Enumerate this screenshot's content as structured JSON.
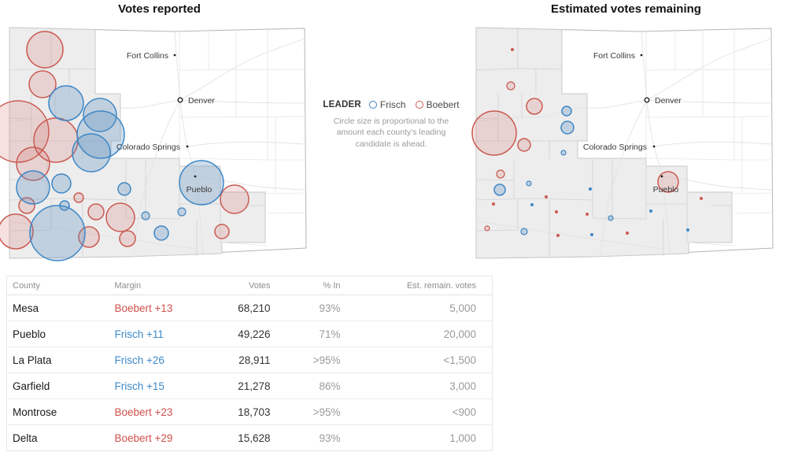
{
  "maps": {
    "left": {
      "title": "Votes reported"
    },
    "right": {
      "title": "Estimated votes remaining"
    },
    "cities": [
      {
        "name": "Fort Collins",
        "marker": "dot",
        "dot": [
          212,
          39
        ],
        "label": [
          204,
          43
        ],
        "anchor": "end"
      },
      {
        "name": "Denver",
        "marker": "ring",
        "dot": [
          219,
          96
        ],
        "label": [
          229,
          100
        ],
        "anchor": "start"
      },
      {
        "name": "Colorado Springs",
        "marker": "dot",
        "dot": [
          228,
          155
        ],
        "label": [
          219,
          159
        ],
        "anchor": "end"
      },
      {
        "name": "Pueblo",
        "marker": "dot",
        "dot": [
          238,
          193
        ],
        "label": [
          243,
          213
        ],
        "anchor": "middle"
      }
    ],
    "circles": {
      "left": {
        "boebert": [
          [
            47,
            32,
            23
          ],
          [
            44,
            76,
            17
          ],
          [
            13,
            136,
            39
          ],
          [
            61,
            147,
            28
          ],
          [
            32,
            177,
            21
          ],
          [
            24,
            230,
            10
          ],
          [
            10,
            263,
            22
          ],
          [
            90,
            220,
            6
          ],
          [
            112,
            238,
            10
          ],
          [
            143,
            245,
            18
          ],
          [
            103,
            270,
            13
          ],
          [
            152,
            272,
            10
          ],
          [
            288,
            222,
            18
          ],
          [
            272,
            263,
            9
          ]
        ],
        "frisch": [
          [
            74,
            100,
            22
          ],
          [
            117,
            115,
            21
          ],
          [
            118,
            140,
            30
          ],
          [
            106,
            163,
            24
          ],
          [
            32,
            207,
            21
          ],
          [
            68,
            202,
            12
          ],
          [
            72,
            230,
            6
          ],
          [
            63,
            265,
            35
          ],
          [
            148,
            209,
            8
          ],
          [
            175,
            243,
            5
          ],
          [
            195,
            265,
            9
          ],
          [
            221,
            238,
            5
          ],
          [
            246,
            201,
            28
          ]
        ]
      },
      "right": {
        "boebert": [
          [
            48,
            32,
            2
          ],
          [
            46,
            78,
            5
          ],
          [
            76,
            104,
            10
          ],
          [
            25,
            138,
            28
          ],
          [
            63,
            153,
            8
          ],
          [
            33,
            190,
            5
          ],
          [
            24,
            228,
            2
          ],
          [
            91,
            219,
            2
          ],
          [
            16,
            259,
            3
          ],
          [
            104,
            238,
            2
          ],
          [
            106,
            268,
            2
          ],
          [
            143,
            241,
            2
          ],
          [
            194,
            265,
            2
          ],
          [
            246,
            200,
            13
          ],
          [
            288,
            221,
            2
          ]
        ],
        "frisch": [
          [
            117,
            110,
            6
          ],
          [
            118,
            131,
            8
          ],
          [
            113,
            163,
            3
          ],
          [
            69,
            202,
            3
          ],
          [
            32,
            210,
            7
          ],
          [
            147,
            209,
            2
          ],
          [
            73,
            229,
            2
          ],
          [
            173,
            246,
            3
          ],
          [
            63,
            263,
            4
          ],
          [
            149,
            267,
            2
          ],
          [
            224,
            237,
            2
          ],
          [
            271,
            261,
            2
          ]
        ]
      }
    }
  },
  "legend": {
    "label": "LEADER",
    "candidates": [
      {
        "name": "Frisch",
        "color": "#3d87c6"
      },
      {
        "name": "Boebert",
        "color": "#cb5a52"
      }
    ],
    "note": "Circle size is proportional to the amount each county's leading candidate is ahead."
  },
  "table": {
    "headers": [
      "County",
      "Margin",
      "Votes",
      "% In",
      "Est. remain. votes"
    ],
    "rows": [
      {
        "county": "Mesa",
        "leader": "Boebert",
        "margin": "Boebert +13",
        "votes": "68,210",
        "pct_in": "93%",
        "est_remaining": "5,000"
      },
      {
        "county": "Pueblo",
        "leader": "Frisch",
        "margin": "Frisch +11",
        "votes": "49,226",
        "pct_in": "71%",
        "est_remaining": "20,000"
      },
      {
        "county": "La Plata",
        "leader": "Frisch",
        "margin": "Frisch +26",
        "votes": "28,911",
        "pct_in": ">95%",
        "est_remaining": "<1,500"
      },
      {
        "county": "Garfield",
        "leader": "Frisch",
        "margin": "Frisch +15",
        "votes": "21,278",
        "pct_in": "86%",
        "est_remaining": "3,000"
      },
      {
        "county": "Montrose",
        "leader": "Boebert",
        "margin": "Boebert +23",
        "votes": "18,703",
        "pct_in": ">95%",
        "est_remaining": "<900"
      },
      {
        "county": "Delta",
        "leader": "Boebert",
        "margin": "Boebert +29",
        "votes": "15,628",
        "pct_in": "93%",
        "est_remaining": "1,000"
      }
    ]
  },
  "colors": {
    "frisch_stroke": "#3d87c6",
    "boebert_stroke": "#cb5a52",
    "margin_blue_text": "#3d8ac9",
    "margin_red_text": "#d0514c",
    "district_fill": "#ededed"
  },
  "chart_data": {
    "type": "table",
    "title": "Colorado county results: Frisch vs. Boebert",
    "columns": [
      "County",
      "Margin",
      "Votes",
      "% In",
      "Est. remain. votes"
    ],
    "rows": [
      [
        "Mesa",
        "Boebert +13",
        68210,
        "93%",
        5000
      ],
      [
        "Pueblo",
        "Frisch +11",
        49226,
        "71%",
        20000
      ],
      [
        "La Plata",
        "Frisch +26",
        28911,
        ">95%",
        "<1,500"
      ],
      [
        "Garfield",
        "Frisch +15",
        21278,
        "86%",
        3000
      ],
      [
        "Montrose",
        "Boebert +23",
        18703,
        ">95%",
        "<900"
      ],
      [
        "Delta",
        "Boebert +29",
        15628,
        "93%",
        1000
      ]
    ]
  }
}
